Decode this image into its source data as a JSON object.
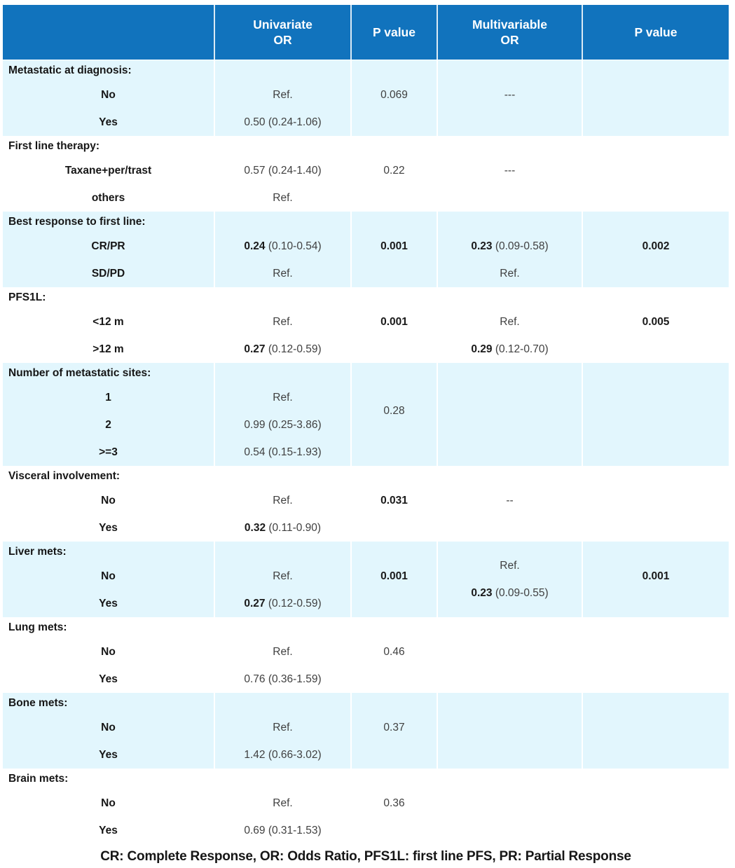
{
  "colors": {
    "header_bg": "#1173bd",
    "header_text": "#ffffff",
    "shaded_row_bg": "#e2f6fd",
    "body_text": "#1a1a1a"
  },
  "table": {
    "header": {
      "col0": {
        "line1": "",
        "line2": ""
      },
      "col1": {
        "line1": "Univariate",
        "line2": "OR"
      },
      "col2": {
        "line1": "P value",
        "line2": ""
      },
      "col3": {
        "line1": "Multivariable",
        "line2": "OR"
      },
      "col4": {
        "line1": "P value",
        "line2": ""
      }
    },
    "sections": [
      {
        "label": "Metastatic at diagnosis:",
        "rows": [
          {
            "label": "No",
            "cells": [
              {
                "parts": [
                  {
                    "t": "Ref."
                  }
                ]
              },
              {
                "parts": [
                  {
                    "t": "0.069"
                  }
                ]
              },
              {
                "parts": [
                  {
                    "t": "---"
                  }
                ]
              },
              null
            ]
          },
          {
            "label": "Yes",
            "cells": [
              {
                "parts": [
                  {
                    "t": "0.50 (0.24-1.06)"
                  }
                ]
              },
              null,
              null,
              null
            ]
          }
        ]
      },
      {
        "label": "First line therapy:",
        "rows": [
          {
            "label": "Taxane+per/trast",
            "cells": [
              {
                "parts": [
                  {
                    "t": "0.57 (0.24-1.40)"
                  }
                ]
              },
              {
                "parts": [
                  {
                    "t": "0.22"
                  }
                ]
              },
              {
                "parts": [
                  {
                    "t": "---"
                  }
                ]
              },
              null
            ]
          },
          {
            "label": "others",
            "cells": [
              {
                "parts": [
                  {
                    "t": "Ref."
                  }
                ]
              },
              null,
              null,
              null
            ]
          }
        ]
      },
      {
        "label": "Best response to first line:",
        "rows": [
          {
            "label": "CR/PR",
            "cells": [
              {
                "parts": [
                  {
                    "t": "0.24",
                    "b": true
                  },
                  {
                    "t": " (0.10-0.54)"
                  }
                ]
              },
              {
                "parts": [
                  {
                    "t": "0.001",
                    "b": true
                  }
                ]
              },
              {
                "parts": [
                  {
                    "t": "0.23",
                    "b": true
                  },
                  {
                    "t": " (0.09-0.58)"
                  }
                ]
              },
              {
                "parts": [
                  {
                    "t": "0.002",
                    "b": true
                  }
                ]
              }
            ]
          },
          {
            "label": "SD/PD",
            "cells": [
              {
                "parts": [
                  {
                    "t": "Ref."
                  }
                ]
              },
              null,
              {
                "parts": [
                  {
                    "t": "Ref."
                  }
                ]
              },
              null
            ]
          }
        ]
      },
      {
        "label": "PFS1L:",
        "rows": [
          {
            "label": "<12 m",
            "cells": [
              {
                "parts": [
                  {
                    "t": "Ref."
                  }
                ]
              },
              {
                "parts": [
                  {
                    "t": "0.001",
                    "b": true
                  }
                ]
              },
              {
                "parts": [
                  {
                    "t": "Ref."
                  }
                ]
              },
              {
                "parts": [
                  {
                    "t": "0.005",
                    "b": true
                  }
                ]
              }
            ]
          },
          {
            "label": ">12 m",
            "cells": [
              {
                "parts": [
                  {
                    "t": "0.27",
                    "b": true
                  },
                  {
                    "t": " (0.12-0.59)"
                  }
                ]
              },
              null,
              {
                "parts": [
                  {
                    "t": "0.29",
                    "b": true
                  },
                  {
                    "t": " (0.12-0.70)"
                  }
                ]
              },
              null
            ]
          }
        ]
      },
      {
        "label": "Number of metastatic sites:",
        "rows": [
          {
            "label": "1",
            "cells": [
              {
                "parts": [
                  {
                    "t": "Ref."
                  }
                ]
              },
              {
                "parts": [
                  {
                    "t": "0.28"
                  }
                ],
                "span": 2
              },
              null,
              null
            ]
          },
          {
            "label": "2",
            "cells": [
              {
                "parts": [
                  {
                    "t": "0.99 (0.25-3.86)"
                  }
                ]
              },
              null,
              null,
              null
            ]
          },
          {
            "label": ">=3",
            "cells": [
              {
                "parts": [
                  {
                    "t": "0.54 (0.15-1.93)"
                  }
                ]
              },
              null,
              null,
              null
            ]
          }
        ]
      },
      {
        "label": "Visceral involvement:",
        "rows": [
          {
            "label": "No",
            "cells": [
              {
                "parts": [
                  {
                    "t": "Ref."
                  }
                ]
              },
              {
                "parts": [
                  {
                    "t": "0.031",
                    "b": true
                  }
                ]
              },
              {
                "parts": [
                  {
                    "t": "--"
                  }
                ]
              },
              null
            ]
          },
          {
            "label": "Yes",
            "cells": [
              {
                "parts": [
                  {
                    "t": "0.32",
                    "b": true
                  },
                  {
                    "t": " (0.11-0.90)"
                  }
                ]
              },
              null,
              null,
              null
            ]
          }
        ]
      },
      {
        "label": "Liver mets:",
        "rows": [
          {
            "label": "No",
            "cells": [
              {
                "parts": [
                  {
                    "t": "Ref."
                  }
                ]
              },
              {
                "parts": [
                  {
                    "t": "0.001",
                    "b": true
                  }
                ]
              },
              {
                "lines": [
                  [
                    {
                      "t": "Ref."
                    }
                  ],
                  [
                    {
                      "t": "0.23",
                      "b": true
                    },
                    {
                      "t": " (0.09-0.55)"
                    }
                  ]
                ],
                "span": 3,
                "row_offset": -1
              },
              {
                "parts": [
                  {
                    "t": "0.001",
                    "b": true
                  }
                ]
              }
            ]
          },
          {
            "label": "Yes",
            "cells": [
              {
                "parts": [
                  {
                    "t": "0.27",
                    "b": true
                  },
                  {
                    "t": " (0.12-0.59)"
                  }
                ]
              },
              null,
              null,
              null
            ]
          }
        ]
      },
      {
        "label": "Lung mets:",
        "rows": [
          {
            "label": "No",
            "cells": [
              {
                "parts": [
                  {
                    "t": "Ref."
                  }
                ]
              },
              {
                "parts": [
                  {
                    "t": "0.46"
                  }
                ]
              },
              null,
              null
            ]
          },
          {
            "label": "Yes",
            "cells": [
              {
                "parts": [
                  {
                    "t": "0.76 (0.36-1.59)"
                  }
                ]
              },
              null,
              null,
              null
            ]
          }
        ]
      },
      {
        "label": "Bone mets:",
        "rows": [
          {
            "label": "No",
            "cells": [
              {
                "parts": [
                  {
                    "t": "Ref."
                  }
                ]
              },
              {
                "parts": [
                  {
                    "t": "0.37"
                  }
                ]
              },
              null,
              null
            ]
          },
          {
            "label": "Yes",
            "cells": [
              {
                "parts": [
                  {
                    "t": "1.42 (0.66-3.02)"
                  }
                ]
              },
              null,
              null,
              null
            ]
          }
        ]
      },
      {
        "label": "Brain mets:",
        "rows": [
          {
            "label": "No",
            "cells": [
              {
                "parts": [
                  {
                    "t": "Ref."
                  }
                ]
              },
              {
                "parts": [
                  {
                    "t": "0.36"
                  }
                ]
              },
              null,
              null
            ]
          },
          {
            "label": "Yes",
            "cells": [
              {
                "parts": [
                  {
                    "t": "0.69 (0.31-1.53)"
                  }
                ]
              },
              null,
              null,
              null
            ]
          }
        ]
      }
    ],
    "footer": "CR: Complete Response, OR: Odds Ratio, PFS1L: first line PFS, PR: Partial Response"
  }
}
